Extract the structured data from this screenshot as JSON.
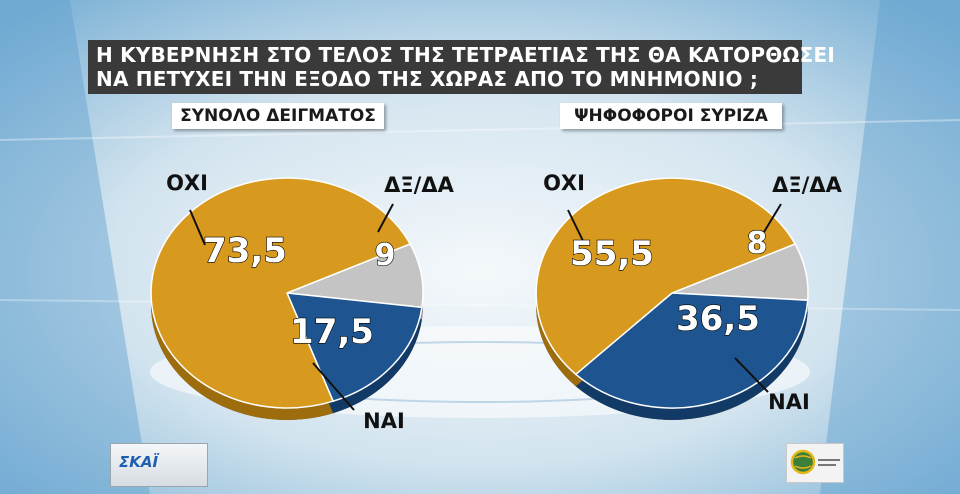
{
  "title": {
    "line1": "Η ΚΥΒΕΡΝΗΣΗ ΣΤΟ ΤΕΛΟΣ ΤΗΣ ΤΕΤΡΑΕΤΙΑΣ ΤΗΣ ΘΑ ΚΑΤΟΡΘΩΣΕΙ",
    "line2": "ΝΑ ΠΕΤΥΧΕΙ ΤΗΝ ΕΞΟΔΟ ΤΗΣ ΧΩΡΑΣ ΑΠΟ ΤΟ ΜΝΗΜΟΝΙΟ ;"
  },
  "branding": {
    "channel_logo": "ΣΚΑΪ"
  },
  "colors": {
    "oxi": "#d79a1e",
    "nai": "#1e5590",
    "dxda": "#c4c4c4",
    "title_bg": "#3a3a3a"
  },
  "chart_data": [
    {
      "type": "pie",
      "title": "ΣΥΝΟΛΟ ΔΕΙΓΜΑΤΟΣ",
      "slices": [
        {
          "key": "dxda",
          "label": "ΔΞ/ΔΑ",
          "value": 9,
          "value_label": "9"
        },
        {
          "key": "nai",
          "label": "ΝΑΙ",
          "value": 17.5,
          "value_label": "17,5"
        },
        {
          "key": "oxi",
          "label": "ΟΧΙ",
          "value": 73.5,
          "value_label": "73,5"
        }
      ]
    },
    {
      "type": "pie",
      "title": "ΨΗΦΟΦΟΡΟΙ ΣΥΡΙΖΑ",
      "slices": [
        {
          "key": "dxda",
          "label": "ΔΞ/ΔΑ",
          "value": 8,
          "value_label": "8"
        },
        {
          "key": "nai",
          "label": "ΝΑΙ",
          "value": 36.5,
          "value_label": "36,5"
        },
        {
          "key": "oxi",
          "label": "ΟΧΙ",
          "value": 55.5,
          "value_label": "55,5"
        }
      ]
    }
  ]
}
